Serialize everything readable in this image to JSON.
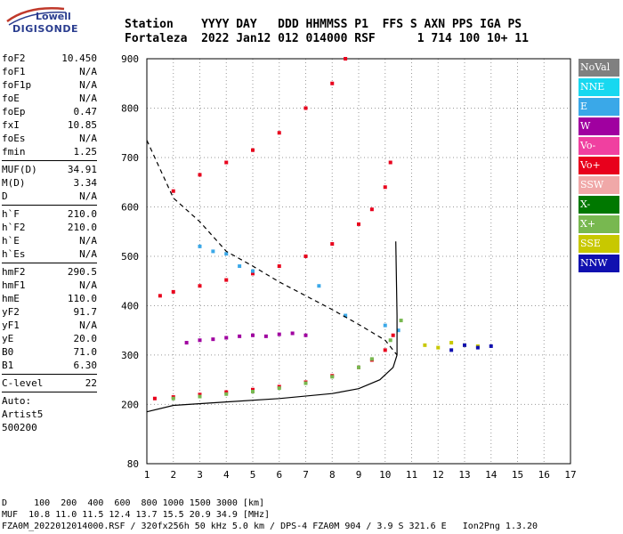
{
  "logo": {
    "line1": "Lowell",
    "line2": "DIGISONDE"
  },
  "header": {
    "row1": "Station    YYYY DAY   DDD HHMMSS P1  FFS S AXN PPS IGA PS",
    "row2": "Fortaleza  2022 Jan12 012 014000 RSF      1 714 100 10+ 11"
  },
  "params": [
    {
      "k": "foF2",
      "v": "10.450"
    },
    {
      "k": "foF1",
      "v": "N/A"
    },
    {
      "k": "foF1p",
      "v": "N/A"
    },
    {
      "k": "foE",
      "v": "N/A"
    },
    {
      "k": "foEp",
      "v": "0.47"
    },
    {
      "k": "fxI",
      "v": "10.85"
    },
    {
      "k": "foEs",
      "v": "N/A"
    },
    {
      "k": "fmin",
      "v": "1.25"
    },
    {
      "sep": true
    },
    {
      "k": "MUF(D)",
      "v": "34.91"
    },
    {
      "k": "M(D)",
      "v": "3.34"
    },
    {
      "k": "D",
      "v": "N/A"
    },
    {
      "sep": true
    },
    {
      "k": "h`F",
      "v": "210.0"
    },
    {
      "k": "h`F2",
      "v": "210.0"
    },
    {
      "k": "h`E",
      "v": "N/A"
    },
    {
      "k": "h`Es",
      "v": "N/A"
    },
    {
      "sep": true
    },
    {
      "k": "hmF2",
      "v": "290.5"
    },
    {
      "k": "hmF1",
      "v": "N/A"
    },
    {
      "k": "hmE",
      "v": "110.0"
    },
    {
      "k": "yF2",
      "v": "91.7"
    },
    {
      "k": "yF1",
      "v": "N/A"
    },
    {
      "k": "yE",
      "v": "20.0"
    },
    {
      "k": "B0",
      "v": "71.0"
    },
    {
      "k": "B1",
      "v": "6.30"
    },
    {
      "sep": true
    },
    {
      "k": "C-level",
      "v": "22"
    },
    {
      "sep": true
    },
    {
      "k": "Auto:",
      "v": ""
    },
    {
      "k": "Artist5",
      "v": ""
    },
    {
      "k": "500200",
      "v": ""
    }
  ],
  "legend": [
    {
      "label": "NoVal",
      "color": "#808080"
    },
    {
      "label": "NNE",
      "color": "#18d8f0"
    },
    {
      "label": "E",
      "color": "#3aa8e8"
    },
    {
      "label": "W",
      "color": "#a000a0"
    },
    {
      "label": "Vo-",
      "color": "#f040a0"
    },
    {
      "label": "Vo+",
      "color": "#e8001c"
    },
    {
      "label": "SSW",
      "color": "#f0a8a8"
    },
    {
      "label": "X-",
      "color": "#007800"
    },
    {
      "label": "X+",
      "color": "#78b850"
    },
    {
      "label": "SSE",
      "color": "#c8c800"
    },
    {
      "label": "NNW",
      "color": "#1010b0"
    }
  ],
  "footer": {
    "row1": "D     100  200  400  600  800 1000 1500 3000 [km]",
    "row2": "MUF  10.8 11.0 11.5 12.4 13.7 15.5 20.9 34.9 [MHz]",
    "row3": "FZA0M_2022012014000.RSF / 320fx256h 50 kHz 5.0 km / DPS-4 FZA0M 904 / 3.9 S 321.6 E   Ion2Png 1.3.20"
  },
  "chart_data": {
    "type": "scatter",
    "title": "",
    "xlabel": "",
    "ylabel": "",
    "xlim": [
      1,
      17
    ],
    "ylim": [
      80,
      900
    ],
    "x_ticks": [
      1,
      2,
      3,
      4,
      5,
      6,
      7,
      8,
      9,
      10,
      11,
      12,
      13,
      14,
      15,
      16,
      17
    ],
    "y_ticks": [
      80,
      200,
      300,
      400,
      500,
      600,
      700,
      800,
      900
    ],
    "grid": "dotted",
    "legend_placement": "right",
    "series": [
      {
        "name": "Vo+",
        "x": [
          1.3,
          2.0,
          3.0,
          4.0,
          5.0,
          6.0,
          7.0,
          8.0,
          9.0,
          9.5,
          10.0,
          10.3
        ],
        "y": [
          212,
          215,
          220,
          225,
          230,
          236,
          245,
          258,
          275,
          290,
          310,
          340
        ]
      },
      {
        "name": "X+",
        "x": [
          2.0,
          3.0,
          4.0,
          5.0,
          6.0,
          7.0,
          8.0,
          9.0,
          9.5,
          10.2,
          10.6
        ],
        "y": [
          212,
          216,
          221,
          226,
          233,
          243,
          256,
          275,
          292,
          330,
          370
        ]
      },
      {
        "name": "Vo+",
        "x": [
          1.5,
          2.0,
          3.0,
          4.0,
          5.0,
          6.0,
          7.0,
          8.0,
          9.0,
          9.5,
          10.0,
          10.2
        ],
        "y": [
          420,
          428,
          440,
          452,
          465,
          480,
          500,
          525,
          565,
          595,
          640,
          690
        ]
      },
      {
        "name": "Vo+",
        "x": [
          2.0,
          3.0,
          4.0,
          5.0,
          6.0,
          7.0,
          8.0,
          8.5
        ],
        "y": [
          632,
          665,
          690,
          715,
          750,
          800,
          850,
          900
        ]
      },
      {
        "name": "W",
        "x": [
          2.5,
          3.0,
          3.5,
          4.0,
          4.5,
          5.0,
          5.5,
          6.0,
          6.5,
          7.0
        ],
        "y": [
          325,
          330,
          332,
          335,
          338,
          340,
          338,
          342,
          344,
          340
        ]
      },
      {
        "name": "E",
        "x": [
          3.0,
          3.5,
          4.0,
          4.5,
          5.0,
          7.5,
          8.5,
          10.0,
          10.5
        ],
        "y": [
          520,
          510,
          505,
          480,
          470,
          440,
          380,
          360,
          350
        ]
      },
      {
        "name": "SSE",
        "x": [
          11.5,
          12.0,
          12.5,
          13.0,
          13.5
        ],
        "y": [
          320,
          315,
          325,
          320,
          318
        ]
      },
      {
        "name": "NNW",
        "x": [
          12.5,
          13.0,
          13.5,
          14.0
        ],
        "y": [
          310,
          320,
          315,
          318
        ]
      }
    ],
    "lines": [
      {
        "name": "profile",
        "style": "solid",
        "x": [
          1.0,
          2.0,
          4.0,
          6.0,
          8.0,
          9.0,
          9.8,
          10.3,
          10.45,
          10.45,
          10.4
        ],
        "y": [
          185,
          198,
          205,
          212,
          222,
          232,
          250,
          275,
          300,
          380,
          530
        ]
      },
      {
        "name": "MUF",
        "style": "dashed",
        "x": [
          1.0,
          2.0,
          3.0,
          4.0,
          5.0,
          6.0,
          7.0,
          8.0,
          9.0,
          10.0,
          10.45
        ],
        "y": [
          735,
          618,
          570,
          510,
          480,
          448,
          420,
          392,
          362,
          330,
          300
        ]
      }
    ]
  }
}
